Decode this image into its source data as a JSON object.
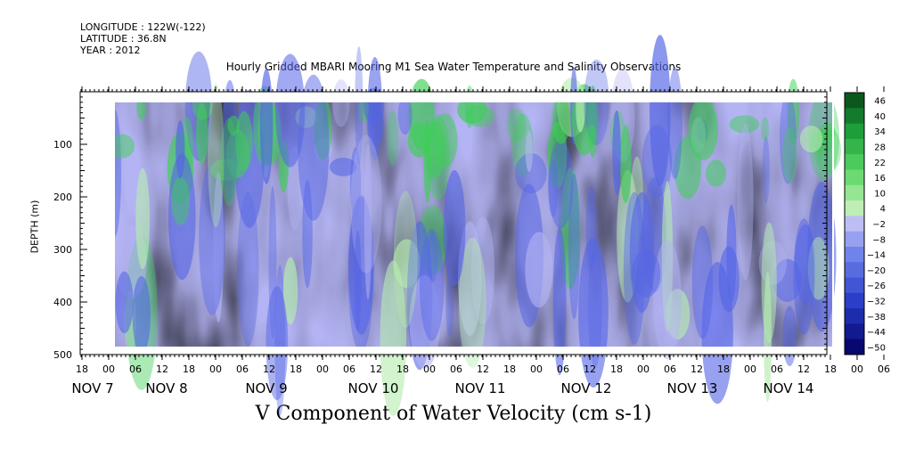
{
  "header": {
    "longitude": "LONGITUDE : 122W(-122)",
    "latitude": "LATITUDE : 36.8N",
    "year": "YEAR : 2012"
  },
  "chart_data": {
    "type": "heatmap",
    "title": "Hourly Gridded MBARI Mooring M1 Sea Water Temperature and Salinity Observations",
    "xlabel": "V Component of Water Velocity (cm s-1)",
    "ylabel": "DEPTH (m)",
    "ylim": [
      500,
      0
    ],
    "data_depth_range": [
      20,
      485
    ],
    "yticks": [
      100,
      200,
      300,
      400,
      500
    ],
    "hour_tick_labels": [
      "18",
      "00",
      "06",
      "12",
      "18",
      "00",
      "06",
      "12",
      "18",
      "00",
      "06",
      "12",
      "18",
      "00",
      "06",
      "12",
      "18",
      "00",
      "06",
      "12",
      "18",
      "00",
      "06",
      "12",
      "18",
      "00",
      "06",
      "12",
      "18",
      "00",
      "06",
      "12",
      "18",
      "00",
      "06",
      "12",
      "18"
    ],
    "day_labels": [
      "NOV 7",
      "NOV 8",
      "NOV 9",
      "NOV 10",
      "NOV 11",
      "NOV 12",
      "NOV 13",
      "NOV 14"
    ],
    "colorbar": {
      "labels": [
        "46",
        "40",
        "34",
        "28",
        "22",
        "16",
        "10",
        "4",
        "-2",
        "-8",
        "-14",
        "-20",
        "-26",
        "-32",
        "-38",
        "-44",
        "-50"
      ],
      "min": -50,
      "max": 46
    },
    "colors": {
      "high": "#0a4a14",
      "mid_positive": "#3fce57",
      "weak_positive": "#b6ecb0",
      "weak_negative": "#b4b4f4",
      "mid_negative": "#5566e6",
      "low": "#000070"
    }
  }
}
